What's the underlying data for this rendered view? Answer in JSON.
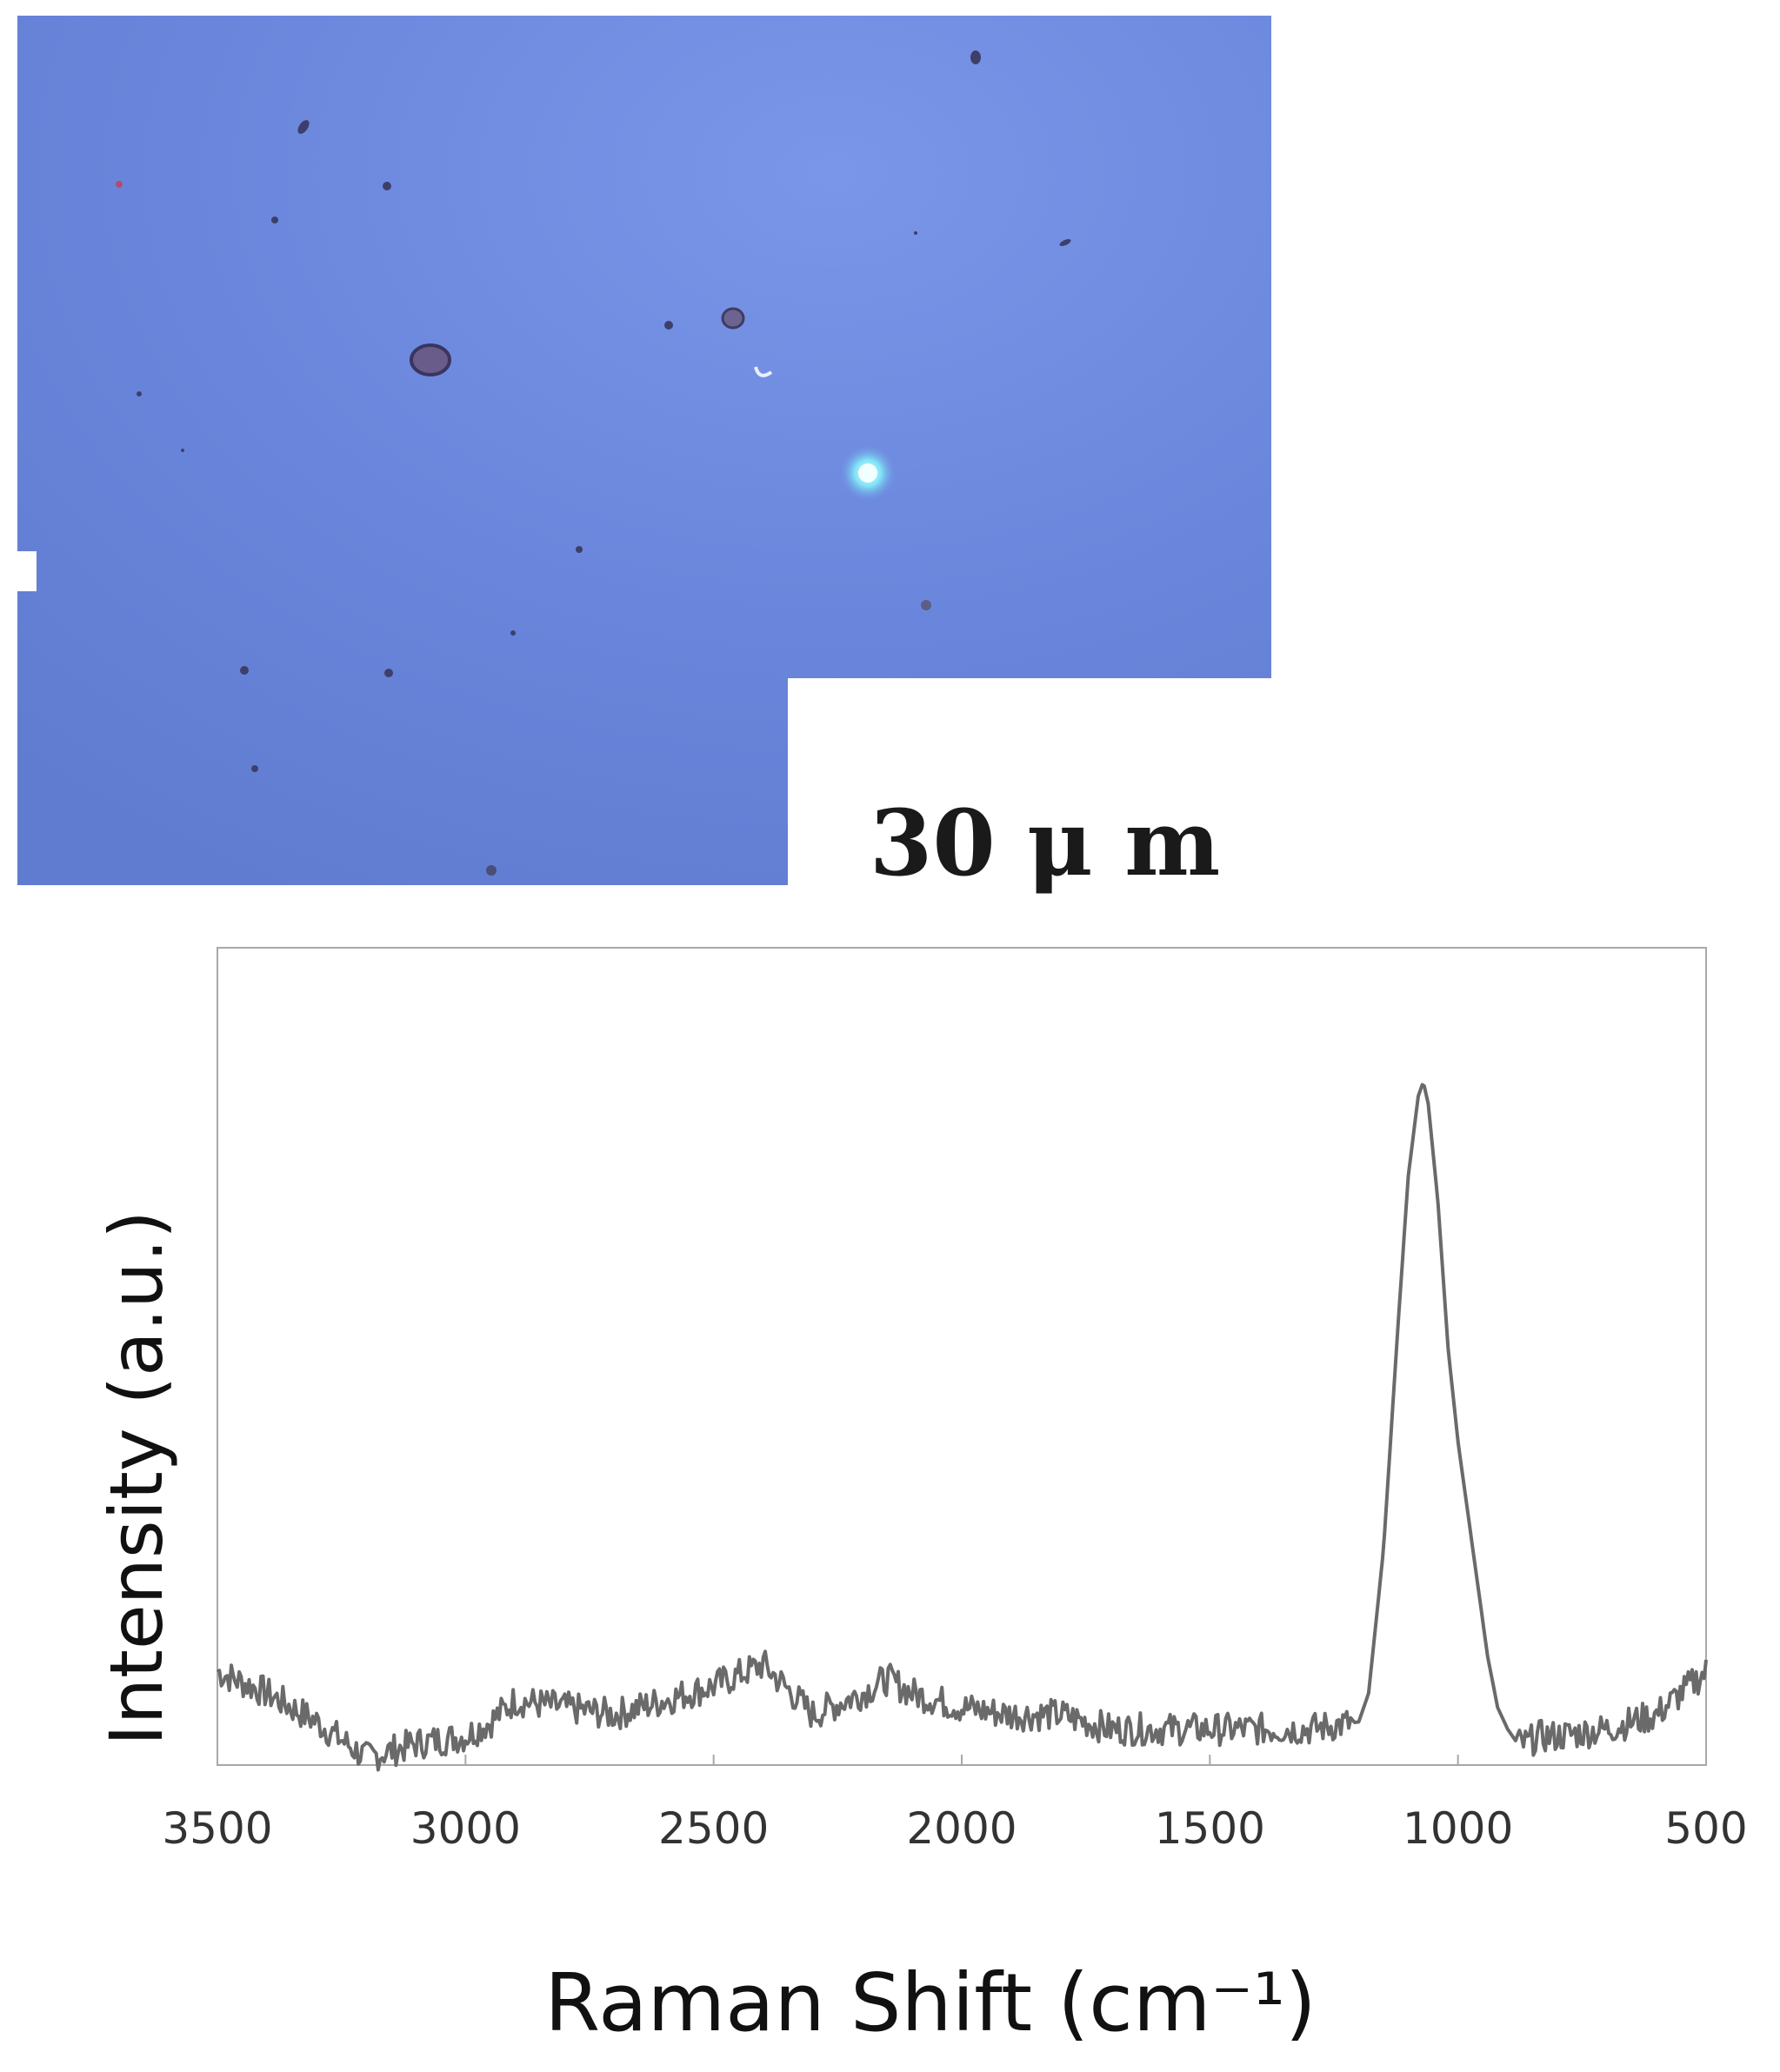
{
  "figure": {
    "scale_bar": {
      "value": "30",
      "unit": "μ m"
    },
    "colors": {
      "micrograph_base": "#6b87dc",
      "spectrum_noise": "#6a6a6a",
      "spectrum_peak": "#111111"
    }
  },
  "chart_data": {
    "type": "line",
    "title": "",
    "xlabel": "Raman Shift (cm⁻¹)",
    "ylabel": "Intensity (a.u.)",
    "x_reversed": true,
    "xlim": [
      3500,
      500
    ],
    "ylim": [
      0,
      100
    ],
    "y_ticks_shown": false,
    "grid": false,
    "x_ticks": [
      3500,
      3000,
      2500,
      2000,
      1500,
      1000,
      500
    ],
    "x_tick_labels": [
      "3500",
      "3000",
      "2500",
      "2000",
      "1500",
      "1000",
      "500"
    ],
    "series": [
      {
        "x": [
          3500,
          3400,
          3300,
          3200,
          3150,
          3100,
          3000,
          2950,
          2900,
          2800,
          2700,
          2600,
          2500,
          2400,
          2300,
          2200,
          2150,
          2100,
          2000,
          1900,
          1800,
          1700,
          1600,
          1500,
          1400,
          1300,
          1200,
          1180,
          1150,
          1120,
          1100,
          1080,
          1070,
          1060,
          1040,
          1020,
          1000,
          980,
          960,
          940,
          920,
          900,
          880,
          860,
          840,
          800,
          700,
          600,
          500
        ],
        "y": [
          13,
          10,
          6,
          1,
          2,
          3,
          4,
          6,
          9,
          8,
          7,
          9,
          11,
          14,
          7,
          10,
          12,
          10,
          8,
          7,
          7,
          5,
          5,
          5,
          5,
          5,
          6,
          10,
          30,
          62,
          82,
          93,
          95,
          92,
          78,
          58,
          45,
          35,
          25,
          15,
          8,
          5,
          3,
          3,
          4,
          4,
          5,
          7,
          13
        ]
      }
    ]
  }
}
